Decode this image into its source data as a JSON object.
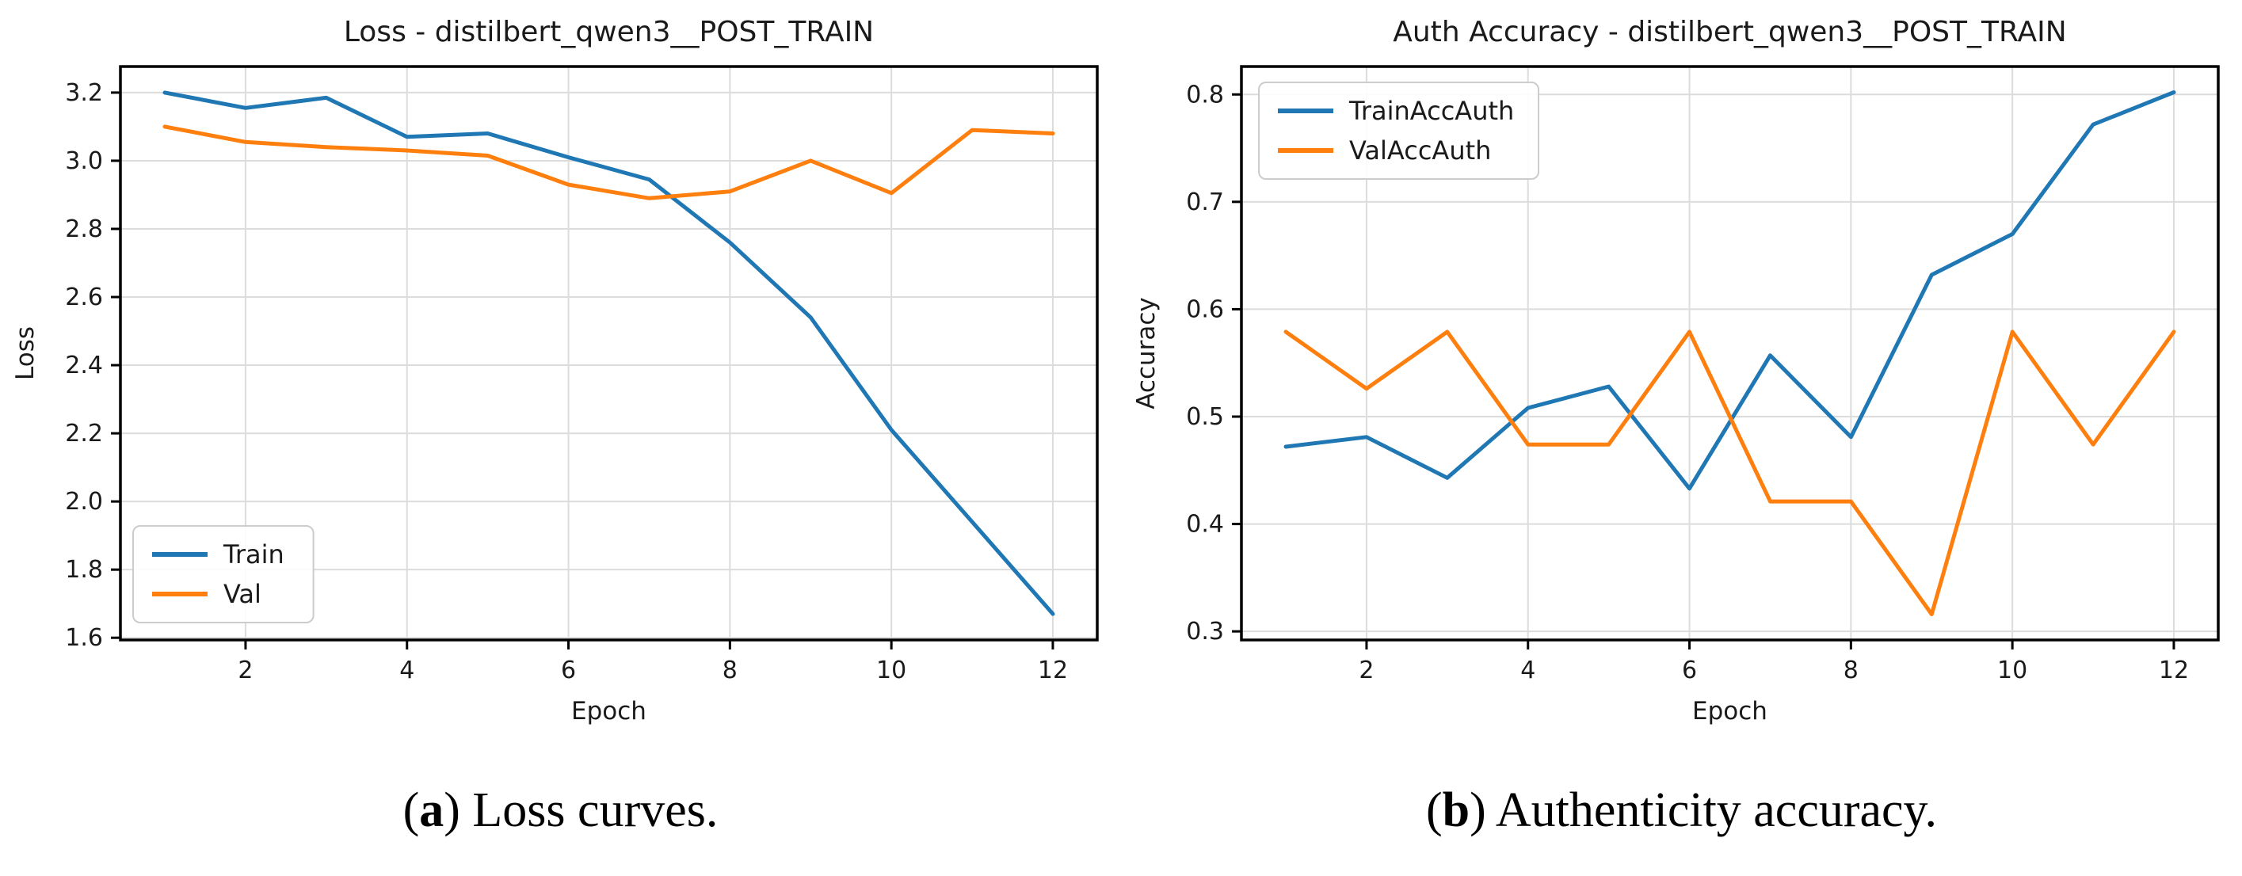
{
  "captions": [
    {
      "open": "(",
      "letter": "a",
      "rest": ") Loss curves."
    },
    {
      "open": "(",
      "letter": "b",
      "rest": ") Authenticity accuracy."
    }
  ],
  "colors": {
    "train_line": "#1f77b4",
    "val_line": "#ff7f0e",
    "grid": "#dcdcdc",
    "spine": "#000000",
    "text": "#1a1a1a",
    "legend_border": "#cccccc",
    "background": "#ffffff"
  },
  "chart_data": [
    {
      "type": "line",
      "title": "Loss - distilbert_qwen3__POST_TRAIN",
      "xlabel": "Epoch",
      "ylabel": "Loss",
      "x": [
        1,
        2,
        3,
        4,
        5,
        6,
        7,
        8,
        9,
        10,
        11,
        12
      ],
      "xticks": [
        2,
        4,
        6,
        8,
        10,
        12
      ],
      "xticklabels": [
        "2",
        "4",
        "6",
        "8",
        "10",
        "12"
      ],
      "yticks": [
        1.6,
        1.8,
        2.0,
        2.2,
        2.4,
        2.6,
        2.8,
        3.0,
        3.2
      ],
      "yticklabels": [
        "1.6",
        "1.8",
        "2.0",
        "2.2",
        "2.4",
        "2.6",
        "2.8",
        "3.0",
        "3.2"
      ],
      "xlim": [
        0.45,
        12.55
      ],
      "ylim": [
        1.5935,
        3.2765
      ],
      "grid": true,
      "legend_position": "lower-left",
      "series": [
        {
          "name": "Train",
          "color": "#1f77b4",
          "values": [
            3.2,
            3.155,
            3.185,
            3.07,
            3.08,
            3.01,
            2.945,
            2.76,
            2.54,
            2.21,
            1.94,
            1.67
          ]
        },
        {
          "name": "Val",
          "color": "#ff7f0e",
          "values": [
            3.1,
            3.055,
            3.04,
            3.03,
            3.015,
            2.93,
            2.89,
            2.91,
            3.0,
            2.905,
            3.09,
            3.08
          ]
        }
      ]
    },
    {
      "type": "line",
      "title": "Auth Accuracy - distilbert_qwen3__POST_TRAIN",
      "xlabel": "Epoch",
      "ylabel": "Accuracy",
      "x": [
        1,
        2,
        3,
        4,
        5,
        6,
        7,
        8,
        9,
        10,
        11,
        12
      ],
      "xticks": [
        2,
        4,
        6,
        8,
        10,
        12
      ],
      "xticklabels": [
        "2",
        "4",
        "6",
        "8",
        "10",
        "12"
      ],
      "yticks": [
        0.3,
        0.4,
        0.5,
        0.6,
        0.7,
        0.8
      ],
      "yticklabels": [
        "0.3",
        "0.4",
        "0.5",
        "0.6",
        "0.7",
        "0.8"
      ],
      "xlim": [
        0.45,
        12.55
      ],
      "ylim": [
        0.292,
        0.826
      ],
      "grid": true,
      "legend_position": "upper-left",
      "series": [
        {
          "name": "TrainAccAuth",
          "color": "#1f77b4",
          "values": [
            0.472,
            0.481,
            0.443,
            0.508,
            0.528,
            0.433,
            0.557,
            0.481,
            0.632,
            0.67,
            0.772,
            0.802
          ]
        },
        {
          "name": "ValAccAuth",
          "color": "#ff7f0e",
          "values": [
            0.579,
            0.526,
            0.579,
            0.474,
            0.474,
            0.579,
            0.421,
            0.421,
            0.316,
            0.579,
            0.474,
            0.579
          ]
        }
      ]
    }
  ]
}
